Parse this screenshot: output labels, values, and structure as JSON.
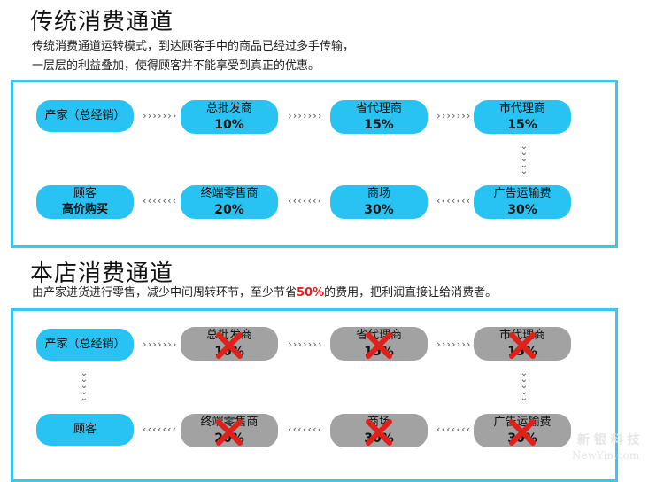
{
  "section1": {
    "title": "传统消费通道",
    "desc_line1": "传统消费通道运转模式，到达顾客手中的商品已经过多手传输，",
    "desc_line2": "一层层的利益叠加，使得顾客并不能享受到真正的优惠。",
    "nodes": [
      {
        "label": "产家（总经销）",
        "pct": ""
      },
      {
        "label": "总批发商",
        "pct": "10%"
      },
      {
        "label": "省代理商",
        "pct": "15%"
      },
      {
        "label": "市代理商",
        "pct": "15%"
      },
      {
        "label": "广告运输费",
        "pct": "30%"
      },
      {
        "label": "商场",
        "pct": "30%"
      },
      {
        "label": "终端零售商",
        "pct": "20%"
      },
      {
        "label": "顾客",
        "pct": "高价购买"
      }
    ]
  },
  "section2": {
    "title": "本店消费通道",
    "desc_pre": "由产家进货进行零售，减少中间周转环节，至少节省",
    "desc_hl": "50%",
    "desc_post": "的费用，把利润直接让给消费者。",
    "nodes": [
      {
        "label": "产家（总经销）",
        "pct": ""
      },
      {
        "label": "总批发商",
        "pct": "10%"
      },
      {
        "label": "省代理商",
        "pct": "15%"
      },
      {
        "label": "市代理商",
        "pct": "15%"
      },
      {
        "label": "广告运输费",
        "pct": "30%"
      },
      {
        "label": "商场",
        "pct": "30%"
      },
      {
        "label": "终端零售商",
        "pct": "20%"
      },
      {
        "label": "顾客",
        "pct": ""
      }
    ]
  },
  "arrows": {
    "right": "›››››››",
    "left": "‹‹‹‹‹‹‹",
    "down": "⌄"
  },
  "watermark": {
    "brand": "新 银 科 技",
    "url": "NewYin.com"
  },
  "colors": {
    "pill_blue": "#29c3f3",
    "pill_gray": "#a2a2a2",
    "border": "#3ec5ef",
    "cross": "#e0201a",
    "highlight": "#e0201a"
  }
}
